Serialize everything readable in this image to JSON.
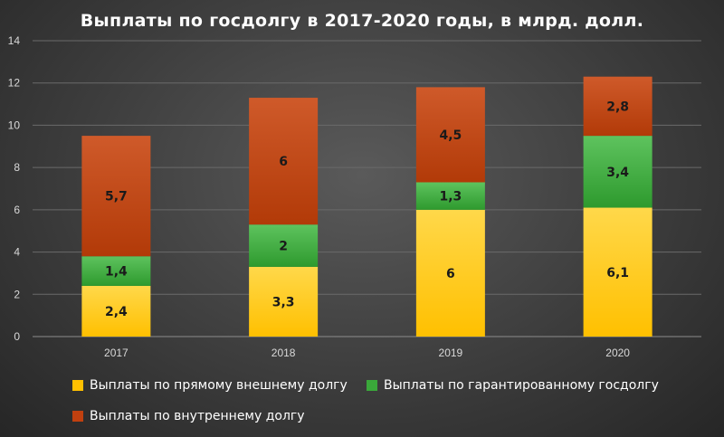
{
  "chart_data": {
    "type": "bar",
    "stacked": true,
    "title": "Выплаты по госдолгу в 2017-2020 годы, в млрд. долл.",
    "categories": [
      "2017",
      "2018",
      "2019",
      "2020"
    ],
    "series": [
      {
        "name": "Выплаты по прямому внешнему долгу",
        "values": [
          2.4,
          3.3,
          6,
          6.1
        ],
        "labels": [
          "2,4",
          "3,3",
          "6",
          "6,1"
        ],
        "color": "#ffc000"
      },
      {
        "name": "Выплаты по гарантированному госдолгу",
        "values": [
          1.4,
          2,
          1.3,
          3.4
        ],
        "labels": [
          "1,4",
          "2",
          "1,3",
          "3,4"
        ],
        "color": "#3aa83a"
      },
      {
        "name": "Выплаты по внутреннему долгу",
        "values": [
          5.7,
          6,
          4.5,
          2.8
        ],
        "labels": [
          "5,7",
          "6",
          "4,5",
          "2,8"
        ],
        "color": "#c0400f"
      }
    ],
    "ylim": [
      0,
      14
    ],
    "yticks": [
      0,
      2,
      4,
      6,
      8,
      10,
      12,
      14
    ],
    "grid": true,
    "legend_position": "bottom"
  }
}
